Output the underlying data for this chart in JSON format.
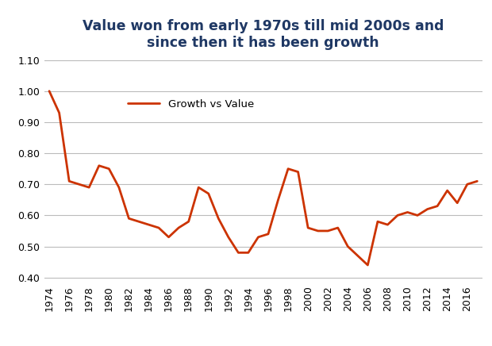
{
  "title_line1": "Value won from early 1970s till mid 2000s and",
  "title_line2": "since then it has been growth",
  "title_color": "#1F3864",
  "legend_label": "Growth vs Value",
  "line_color": "#CC3300",
  "background_color": "#FFFFFF",
  "grid_color": "#BBBBBB",
  "years": [
    1974,
    1975,
    1976,
    1977,
    1978,
    1979,
    1980,
    1981,
    1982,
    1983,
    1984,
    1985,
    1986,
    1987,
    1988,
    1989,
    1990,
    1991,
    1992,
    1993,
    1994,
    1995,
    1996,
    1997,
    1998,
    1999,
    2000,
    2001,
    2002,
    2003,
    2004,
    2005,
    2006,
    2007,
    2008,
    2009,
    2010,
    2011,
    2012,
    2013,
    2014,
    2015,
    2016,
    2017
  ],
  "values": [
    1.0,
    0.93,
    0.71,
    0.7,
    0.69,
    0.76,
    0.75,
    0.69,
    0.59,
    0.58,
    0.57,
    0.56,
    0.53,
    0.56,
    0.58,
    0.69,
    0.67,
    0.59,
    0.53,
    0.48,
    0.48,
    0.53,
    0.54,
    0.65,
    0.75,
    0.74,
    0.56,
    0.55,
    0.55,
    0.56,
    0.5,
    0.47,
    0.44,
    0.58,
    0.57,
    0.6,
    0.61,
    0.6,
    0.62,
    0.63,
    0.68,
    0.64,
    0.7,
    0.71
  ],
  "ylim": [
    0.38,
    1.115
  ],
  "yticks": [
    0.4,
    0.5,
    0.6,
    0.7,
    0.8,
    0.9,
    1.0,
    1.1
  ],
  "xtick_years": [
    1974,
    1976,
    1978,
    1980,
    1982,
    1984,
    1986,
    1988,
    1990,
    1992,
    1994,
    1996,
    1998,
    2000,
    2002,
    2004,
    2006,
    2008,
    2010,
    2012,
    2014,
    2016
  ],
  "line_width": 2.0,
  "tick_label_fontsize": 9,
  "title_fontsize": 12.5
}
